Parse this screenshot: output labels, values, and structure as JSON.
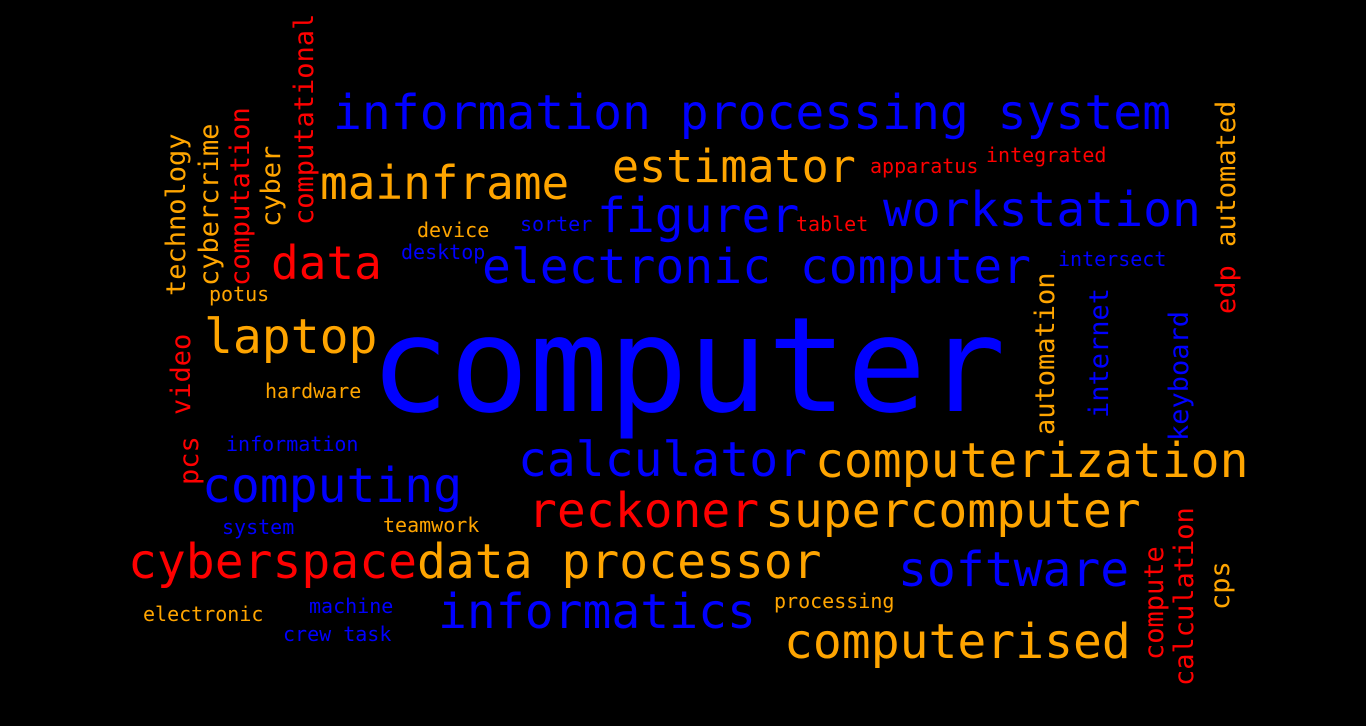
{
  "colors": {
    "background": "#000000",
    "blue": "#0000ff",
    "orange": "#ffa500",
    "red": "#ff0000"
  },
  "words": {
    "computer": "computer",
    "information_processing_system": "information processing system",
    "mainframe": "mainframe",
    "estimator": "estimator",
    "apparatus": "apparatus",
    "integrated": "integrated",
    "figurer": "figurer",
    "workstation": "workstation",
    "data": "data",
    "device": "device",
    "sorter": "sorter",
    "tablet": "tablet",
    "desktop": "desktop",
    "electronic_computer": "electronic computer",
    "intersect": "intersect",
    "potus": "potus",
    "laptop": "laptop",
    "hardware": "hardware",
    "information": "information",
    "calculator": "calculator",
    "computerization": "computerization",
    "computing": "computing",
    "reckoner": "reckoner",
    "supercomputer": "supercomputer",
    "system": "system",
    "teamwork": "teamwork",
    "cyberspace": "cyberspace",
    "data_processor": "data processor",
    "software": "software",
    "electronic": "electronic",
    "machine": "machine",
    "informatics": "informatics",
    "processing": "processing",
    "crew_task": "crew task",
    "computerised": "computerised",
    "technology": "technology",
    "cybercrime": "cybercrime",
    "computation": "computation",
    "cyber": "cyber",
    "computational": "computational",
    "automated": "automated",
    "edp": "edp",
    "automation": "automation",
    "internet": "internet",
    "keyboard": "keyboard",
    "video": "video",
    "pcs": "pcs",
    "compute": "compute",
    "calculation": "calculation",
    "cps": "cps"
  }
}
